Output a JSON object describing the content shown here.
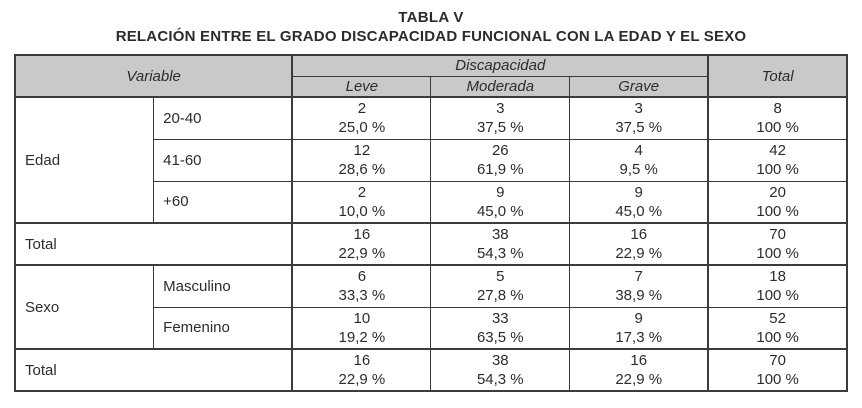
{
  "title": "TABLA V",
  "subtitle": "RELACIÓN ENTRE EL GRADO DISCAPACIDAD FUNCIONAL CON LA EDAD Y EL SEXO",
  "colors": {
    "header_bg": "#c9c9cb",
    "border": "#3b3b3d",
    "text": "#2c2c2e",
    "page_bg": "#ffffff"
  },
  "table": {
    "header": {
      "variable_label": "Variable",
      "group_label": "Discapacidad",
      "sub_labels": [
        "Leve",
        "Moderada",
        "Grave"
      ],
      "total_label": "Total"
    },
    "sections": [
      {
        "label": "Edad",
        "rows": [
          {
            "category": "20-40",
            "cells": [
              {
                "n": "2",
                "pct": "25,0 %"
              },
              {
                "n": "3",
                "pct": "37,5 %"
              },
              {
                "n": "3",
                "pct": "37,5 %"
              },
              {
                "n": "8",
                "pct": "100 %"
              }
            ]
          },
          {
            "category": "41-60",
            "cells": [
              {
                "n": "12",
                "pct": "28,6 %"
              },
              {
                "n": "26",
                "pct": "61,9 %"
              },
              {
                "n": "4",
                "pct": "9,5 %"
              },
              {
                "n": "42",
                "pct": "100 %"
              }
            ]
          },
          {
            "category": "+60",
            "cells": [
              {
                "n": "2",
                "pct": "10,0 %"
              },
              {
                "n": "9",
                "pct": "45,0 %"
              },
              {
                "n": "9",
                "pct": "45,0 %"
              },
              {
                "n": "20",
                "pct": "100 %"
              }
            ]
          }
        ],
        "total": {
          "label": "Total",
          "cells": [
            {
              "n": "16",
              "pct": "22,9 %"
            },
            {
              "n": "38",
              "pct": "54,3 %"
            },
            {
              "n": "16",
              "pct": "22,9 %"
            },
            {
              "n": "70",
              "pct": "100 %"
            }
          ]
        }
      },
      {
        "label": "Sexo",
        "rows": [
          {
            "category": "Masculino",
            "cells": [
              {
                "n": "6",
                "pct": "33,3 %"
              },
              {
                "n": "5",
                "pct": "27,8 %"
              },
              {
                "n": "7",
                "pct": "38,9 %"
              },
              {
                "n": "18",
                "pct": "100 %"
              }
            ]
          },
          {
            "category": "Femenino",
            "cells": [
              {
                "n": "10",
                "pct": "19,2 %"
              },
              {
                "n": "33",
                "pct": "63,5 %"
              },
              {
                "n": "9",
                "pct": "17,3 %"
              },
              {
                "n": "52",
                "pct": "100 %"
              }
            ]
          }
        ],
        "total": {
          "label": "Total",
          "cells": [
            {
              "n": "16",
              "pct": "22,9 %"
            },
            {
              "n": "38",
              "pct": "54,3 %"
            },
            {
              "n": "16",
              "pct": "22,9 %"
            },
            {
              "n": "70",
              "pct": "100 %"
            }
          ]
        }
      }
    ]
  }
}
